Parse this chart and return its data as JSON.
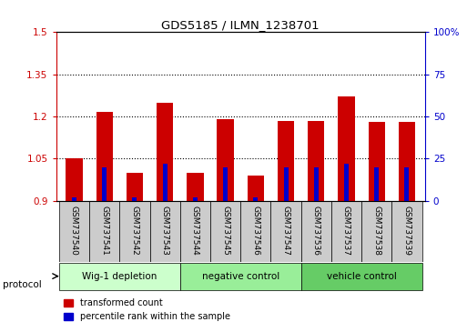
{
  "title": "GDS5185 / ILMN_1238701",
  "samples": [
    "GSM737540",
    "GSM737541",
    "GSM737542",
    "GSM737543",
    "GSM737544",
    "GSM737545",
    "GSM737546",
    "GSM737547",
    "GSM737536",
    "GSM737537",
    "GSM737538",
    "GSM737539"
  ],
  "transformed_count": [
    1.05,
    1.215,
    1.0,
    1.25,
    1.0,
    1.19,
    0.99,
    1.185,
    1.185,
    1.27,
    1.18,
    1.18
  ],
  "percentile_rank": [
    2,
    20,
    2,
    22,
    2,
    20,
    2,
    20,
    20,
    22,
    20,
    20
  ],
  "groups": [
    {
      "label": "Wig-1 depletion",
      "start": 0,
      "end": 4,
      "color": "#ccffcc"
    },
    {
      "label": "negative control",
      "start": 4,
      "end": 8,
      "color": "#99ee99"
    },
    {
      "label": "vehicle control",
      "start": 8,
      "end": 12,
      "color": "#66cc66"
    }
  ],
  "ylim_left": [
    0.9,
    1.5
  ],
  "ylim_right": [
    0,
    100
  ],
  "yticks_left": [
    0.9,
    1.05,
    1.2,
    1.35,
    1.5
  ],
  "yticks_right": [
    0,
    25,
    50,
    75,
    100
  ],
  "ytick_labels_left": [
    "0.9",
    "1.05",
    "1.2",
    "1.35",
    "1.5"
  ],
  "ytick_labels_right": [
    "0",
    "25",
    "50",
    "75",
    "100%"
  ],
  "left_axis_color": "#cc0000",
  "right_axis_color": "#0000cc",
  "bar_color_red": "#cc0000",
  "bar_color_blue": "#0000cc",
  "bar_width": 0.55,
  "blue_bar_width": 0.15,
  "background_color": "#ffffff",
  "plot_bg": "#ffffff",
  "sample_box_color": "#cccccc",
  "protocol_label": "protocol",
  "legend_red": "transformed count",
  "legend_blue": "percentile rank within the sample",
  "grid_yticks": [
    1.05,
    1.2,
    1.35
  ]
}
